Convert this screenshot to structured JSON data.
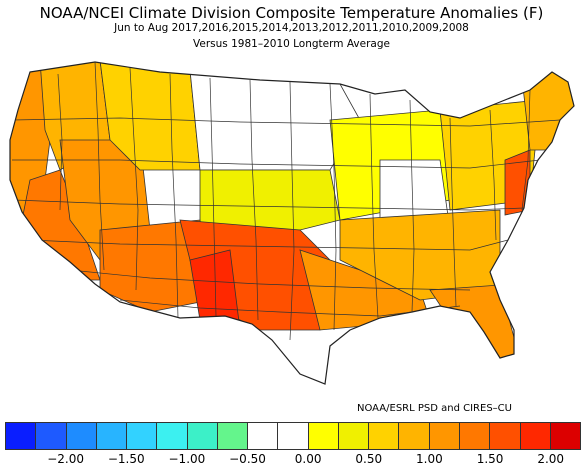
{
  "header": {
    "title": "NOAA/NCEI Climate Division Composite Temperature Anomalies (F)",
    "period": "Jun to Aug  2017,2016,2015,2014,2013,2012,2011,2010,2009,2008",
    "baseline": "Versus 1981–2010 Longterm Average"
  },
  "credit": "NOAA/ESRL PSD and CIRES–CU",
  "legend": {
    "colors": [
      "#0a1eff",
      "#1e5aff",
      "#1e8cff",
      "#28b4ff",
      "#32d2ff",
      "#3cf0f0",
      "#3cf0c8",
      "#64f58c",
      "#ffffff",
      "#ffffff",
      "#ffff00",
      "#f0f000",
      "#ffd200",
      "#ffb400",
      "#ff9600",
      "#ff7800",
      "#ff5000",
      "#ff2800",
      "#dc0000"
    ],
    "ticks": [
      "−2.00",
      "−1.50",
      "−1.00",
      "−0.50",
      "0.00",
      "0.50",
      "1.00",
      "1.50",
      "2.00"
    ]
  },
  "map_regions": [
    {
      "name": "west-coast",
      "color": "#ff9600"
    },
    {
      "name": "california-interior",
      "color": "#ff7800"
    },
    {
      "name": "northwest-interior",
      "color": "#ffb400"
    },
    {
      "name": "great-basin",
      "color": "#ff9600"
    },
    {
      "name": "northern-rockies",
      "color": "#ffd200"
    },
    {
      "name": "northern-plains",
      "color": "#ffffff"
    },
    {
      "name": "central-plains",
      "color": "#f0f000"
    },
    {
      "name": "southwest",
      "color": "#ff7800"
    },
    {
      "name": "texas-new-mexico",
      "color": "#ff5000"
    },
    {
      "name": "big-bend",
      "color": "#ff2800"
    },
    {
      "name": "gulf-coast",
      "color": "#ff9600"
    },
    {
      "name": "midwest",
      "color": "#ffff00"
    },
    {
      "name": "ohio-valley",
      "color": "#ffffff"
    },
    {
      "name": "southeast",
      "color": "#ffb400"
    },
    {
      "name": "florida",
      "color": "#ff9600"
    },
    {
      "name": "northeast",
      "color": "#ffd200"
    },
    {
      "name": "mid-atlantic",
      "color": "#ff5000"
    },
    {
      "name": "new-england",
      "color": "#ffb400"
    }
  ]
}
